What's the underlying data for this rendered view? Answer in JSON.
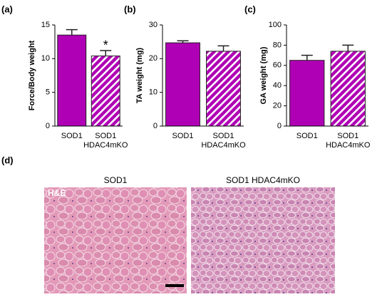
{
  "chart_data": [
    {
      "type": "bar",
      "panel": "(a)",
      "ylabel": "Force/Body weight",
      "categories": [
        "SOD1",
        "SOD1 HDAC4mKO"
      ],
      "values": [
        13.5,
        10.4
      ],
      "errors": [
        0.8,
        0.8
      ],
      "color": "#b000b5",
      "hatched": [
        false,
        true
      ],
      "annotation": "*",
      "ylim": [
        0,
        15
      ],
      "yticks": [
        0,
        5,
        10,
        15
      ]
    },
    {
      "type": "bar",
      "panel": "(b)",
      "ylabel": "TA weight (mg)",
      "categories": [
        "SOD1",
        "SOD1 HDAC4mKO"
      ],
      "values": [
        24.7,
        22.2
      ],
      "errors": [
        0.6,
        1.6
      ],
      "color": "#b000b5",
      "hatched": [
        false,
        true
      ],
      "ylim": [
        0,
        30
      ],
      "yticks": [
        0,
        10,
        20,
        30
      ]
    },
    {
      "type": "bar",
      "panel": "(c)",
      "ylabel": "GA weight (mg)",
      "categories": [
        "SOD1",
        "SOD1 HDAC4mKO"
      ],
      "values": [
        65,
        74
      ],
      "errors": [
        5,
        6
      ],
      "color": "#b000b5",
      "hatched": [
        false,
        true
      ],
      "ylim": [
        0,
        100
      ],
      "yticks": [
        0,
        20,
        40,
        60,
        80,
        100
      ]
    }
  ],
  "panel_d": {
    "label": "(d)",
    "titles": [
      "SOD1",
      "SOD1 HDAC4mKO"
    ],
    "stain": "H&E"
  }
}
